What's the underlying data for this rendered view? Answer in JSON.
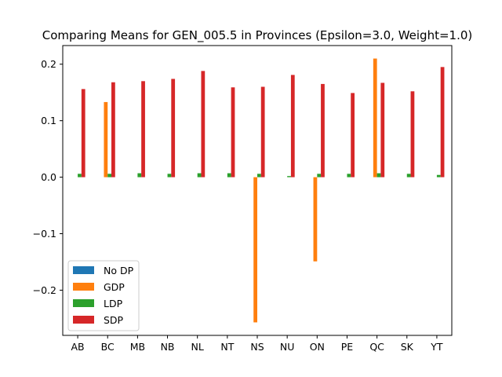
{
  "chart_data": {
    "type": "bar",
    "title": "Comparing Means for GEN_005.5 in Provinces (Epsilon=3.0, Weight=1.0)",
    "xlabel": "",
    "ylabel": "",
    "categories": [
      "AB",
      "BC",
      "MB",
      "NB",
      "NL",
      "NT",
      "NS",
      "NU",
      "ON",
      "PE",
      "QC",
      "SK",
      "YT"
    ],
    "ylim": [
      -0.28,
      0.233
    ],
    "yticks": [
      -0.2,
      -0.1,
      0.0,
      0.1,
      0.2
    ],
    "ytick_labels": [
      "−0.2",
      "−0.1",
      "0.0",
      "0.1",
      "0.2"
    ],
    "grid": false,
    "legend_position": "lower-left",
    "series": [
      {
        "name": "No DP",
        "color": "#1f77b4",
        "values": [
          0,
          0,
          0,
          0,
          0,
          0,
          0,
          0,
          0,
          0,
          0,
          0,
          0
        ]
      },
      {
        "name": "GDP",
        "color": "#ff7f0e",
        "values": [
          0,
          0.133,
          0,
          0,
          0,
          0,
          -0.257,
          0,
          -0.149,
          0,
          0.21,
          0,
          0
        ]
      },
      {
        "name": "LDP",
        "color": "#2ca02c",
        "values": [
          0.006,
          0.006,
          0.007,
          0.006,
          0.007,
          0.007,
          0.006,
          0.002,
          0.006,
          0.006,
          0.007,
          0.006,
          0.004
        ]
      },
      {
        "name": "SDP",
        "color": "#d62728",
        "values": [
          0.156,
          0.168,
          0.17,
          0.174,
          0.188,
          0.159,
          0.16,
          0.181,
          0.165,
          0.149,
          0.167,
          0.152,
          0.195
        ]
      }
    ]
  }
}
